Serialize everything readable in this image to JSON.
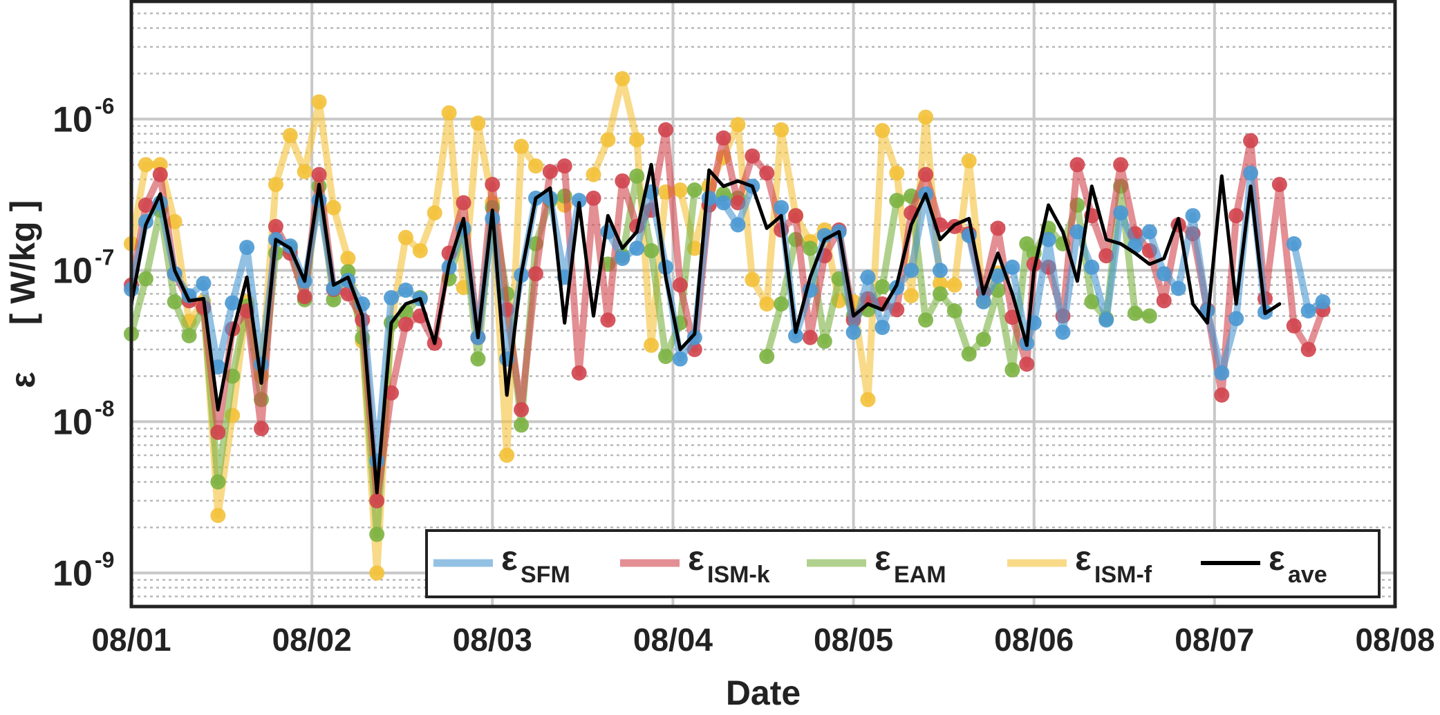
{
  "chart_data": {
    "type": "line",
    "title": "",
    "xlabel": "Date",
    "ylabel": {
      "symbol": "ε",
      "unit": "[ W/kg ]"
    },
    "yscale": "log",
    "ylim": [
      6e-10,
      6e-06
    ],
    "xlim": [
      0,
      7
    ],
    "x_ticks": [
      {
        "x": 0,
        "label": "08/01"
      },
      {
        "x": 1,
        "label": "08/02"
      },
      {
        "x": 2,
        "label": "08/03"
      },
      {
        "x": 3,
        "label": "08/04"
      },
      {
        "x": 4,
        "label": "08/05"
      },
      {
        "x": 5,
        "label": "08/06"
      },
      {
        "x": 6,
        "label": "08/07"
      },
      {
        "x": 7,
        "label": "08/08"
      }
    ],
    "y_ticks": [
      {
        "value": 1e-09,
        "base": "10",
        "exp": "-9"
      },
      {
        "value": 1e-08,
        "base": "10",
        "exp": "-8"
      },
      {
        "value": 1e-07,
        "base": "10",
        "exp": "-7"
      },
      {
        "value": 1e-06,
        "base": "10",
        "exp": "-6"
      }
    ],
    "grid": "major and minor",
    "legend_position": "bottom-right",
    "legend": [
      {
        "symbol": "ε",
        "sub": "SFM"
      },
      {
        "symbol": "ε",
        "sub": "ISM-k"
      },
      {
        "symbol": "ε",
        "sub": "EAM"
      },
      {
        "symbol": "ε",
        "sub": "ISM-f"
      },
      {
        "symbol": "ε",
        "sub": "ave"
      }
    ],
    "colors": {
      "SFM": "#4a98d2",
      "ISM-k": "#d0444d",
      "EAM": "#7cb342",
      "ISM-f": "#f3c13a",
      "ave": "#000000",
      "grid": "#c8c8c8",
      "frame": "#222222"
    },
    "series": [
      {
        "name": "ε_SFM",
        "key": "SFM",
        "x": [
          0.0,
          0.08,
          0.16,
          0.24,
          0.32,
          0.4,
          0.48,
          0.56,
          0.64,
          0.72,
          0.8,
          0.88,
          0.96,
          1.04,
          1.12,
          1.2,
          1.28,
          1.36,
          1.44,
          1.52,
          1.6,
          1.68,
          1.76,
          1.84,
          1.92,
          2.0,
          2.08,
          2.16,
          2.24,
          2.32,
          2.4,
          2.48,
          2.56,
          2.64,
          2.72,
          2.8,
          2.88,
          2.96,
          3.04,
          3.12,
          3.2,
          3.28,
          3.36,
          3.44,
          3.52,
          3.6,
          3.68,
          3.76,
          3.84,
          3.92,
          4.0,
          4.08,
          4.16,
          4.24,
          4.32,
          4.4,
          4.48,
          4.56,
          4.64,
          4.72,
          4.8,
          4.88,
          4.96,
          5.0,
          5.08,
          5.16,
          5.24,
          5.32,
          5.4,
          5.48,
          5.56,
          5.64,
          5.72,
          5.8,
          5.88,
          5.96,
          6.04,
          6.12,
          6.2,
          6.28,
          6.36,
          6.44,
          6.52,
          6.6,
          6.68,
          6.76,
          6.84,
          6.92,
          7.0
        ],
        "y": [
          7.5e-08,
          2.1e-07,
          2.8e-07,
          9.5e-08,
          6.8e-08,
          8.2e-08,
          2.3e-08,
          6.1e-08,
          1.42e-07,
          2.4e-08,
          1.6e-07,
          1.45e-07,
          8.5e-08,
          2.9e-07,
          7.6e-08,
          8.6e-08,
          6e-08,
          5.5e-09,
          6.6e-08,
          7.4e-08,
          6.5e-08,
          null,
          1.05e-07,
          1.9e-07,
          3.6e-08,
          2.2e-07,
          2.6e-08,
          9.3e-08,
          3e-07,
          3e-07,
          9e-08,
          2.9e-07,
          null,
          1.8e-07,
          1.2e-07,
          1.4e-07,
          3.3e-07,
          1.05e-07,
          2.6e-08,
          3.6e-08,
          3e-07,
          2.8e-07,
          2e-07,
          3.6e-07,
          null,
          2.6e-07,
          3.7e-08,
          7.4e-08,
          1.7e-07,
          1.8e-07,
          3.9e-08,
          9e-08,
          4.2e-08,
          7.7e-08,
          1e-07,
          3.2e-07,
          1e-07,
          null,
          1.7e-07,
          6.2e-08,
          9.2e-08,
          1.05e-07,
          3.3e-08,
          4.5e-08,
          1.6e-07,
          3.9e-08,
          1.8e-07,
          1.05e-07,
          4.7e-08,
          2.4e-07,
          1.45e-07,
          1.8e-07,
          9.5e-08,
          7.6e-08,
          2.3e-07,
          5.4e-08,
          2.1e-08,
          4.8e-08,
          4.4e-07,
          5.3e-08,
          null,
          1.5e-07,
          5.4e-08,
          6.2e-08,
          null,
          null,
          null,
          null,
          null
        ],
        "marker_count": 79
      },
      {
        "name": "ε_ISM-k",
        "key": "ISM-k",
        "x": [
          0.0,
          0.08,
          0.16,
          0.24,
          0.32,
          0.4,
          0.48,
          0.56,
          0.64,
          0.72,
          0.8,
          0.88,
          0.96,
          1.04,
          1.12,
          1.2,
          1.28,
          1.36,
          1.44,
          1.52,
          1.6,
          1.68,
          1.76,
          1.84,
          1.92,
          2.0,
          2.08,
          2.16,
          2.24,
          2.32,
          2.4,
          2.48,
          2.56,
          2.64,
          2.72,
          2.8,
          2.88,
          2.96,
          3.04,
          3.12,
          3.2,
          3.28,
          3.36,
          3.44,
          3.52,
          3.6,
          3.68,
          3.76,
          3.84,
          3.92,
          4.0,
          4.08,
          4.16,
          4.24,
          4.32,
          4.4,
          4.48,
          4.56,
          4.64,
          4.72,
          4.8,
          4.88,
          4.96,
          5.0,
          5.08,
          5.16,
          5.24,
          5.32,
          5.4,
          5.48,
          5.56,
          5.64,
          5.72,
          5.8,
          5.88,
          5.96,
          6.04,
          6.12,
          6.2,
          6.28,
          6.36,
          6.44,
          6.52,
          6.6,
          6.68,
          6.76,
          6.84,
          6.92,
          7.0
        ],
        "y": [
          8e-08,
          2.7e-07,
          4.3e-07,
          9.5e-08,
          6.3e-08,
          5.7e-08,
          8.5e-09,
          4.1e-08,
          5.4e-08,
          9e-09,
          1.95e-07,
          1.3e-07,
          6.7e-08,
          4.3e-07,
          7.5e-08,
          7e-08,
          4.7e-08,
          3e-09,
          1.55e-08,
          4.4e-08,
          5e-08,
          3.3e-08,
          1.3e-07,
          2.8e-07,
          3.6e-08,
          3.7e-07,
          5.5e-08,
          1.2e-08,
          9.5e-08,
          4.5e-07,
          4.9e-07,
          2.1e-08,
          3e-07,
          4.7e-08,
          3.9e-07,
          1.95e-07,
          2.5e-07,
          8.5e-07,
          8e-08,
          3e-08,
          2.7e-07,
          7.5e-07,
          2.8e-07,
          5.7e-07,
          4.4e-07,
          1.85e-07,
          2.3e-07,
          3.6e-08,
          1.25e-07,
          1.85e-07,
          4.7e-08,
          6.5e-08,
          6e-08,
          5.5e-08,
          2.4e-07,
          4.3e-07,
          2e-07,
          1.95e-07,
          1.75e-07,
          7.2e-08,
          1.9e-07,
          4.9e-08,
          2.4e-08,
          1.1e-07,
          1.05e-07,
          5e-08,
          5e-07,
          2.3e-07,
          1.25e-07,
          5e-07,
          1.75e-07,
          1.35e-07,
          6.3e-08,
          2e-07,
          1.75e-07,
          5.5e-08,
          1.5e-08,
          2.3e-07,
          7.2e-07,
          6.5e-08,
          3.7e-07,
          4.3e-08,
          3e-08,
          5.5e-08,
          null,
          null,
          null,
          null,
          null
        ],
        "marker_count": 84
      },
      {
        "name": "ε_EAM",
        "key": "EAM",
        "x": [
          0.0,
          0.08,
          0.16,
          0.24,
          0.32,
          0.4,
          0.48,
          0.56,
          0.64,
          0.72,
          0.8,
          0.88,
          0.96,
          1.04,
          1.12,
          1.2,
          1.28,
          1.36,
          1.44,
          1.52,
          1.6,
          1.68,
          1.76,
          1.84,
          1.92,
          2.0,
          2.08,
          2.16,
          2.24,
          2.32,
          2.4,
          2.48,
          2.56,
          2.64,
          2.72,
          2.8,
          2.88,
          2.96,
          3.04,
          3.12,
          3.2,
          3.28,
          3.36,
          3.44,
          3.52,
          3.6,
          3.68,
          3.76,
          3.84,
          3.92,
          4.0,
          4.08,
          4.16,
          4.24,
          4.32,
          4.4,
          4.48,
          4.56,
          4.64,
          4.72,
          4.8,
          4.88,
          4.96,
          5.0,
          5.08,
          5.16,
          5.24,
          5.32,
          5.4,
          5.48,
          5.56,
          5.64,
          5.72,
          5.8,
          5.88,
          5.96,
          6.04,
          6.12,
          6.2,
          6.28,
          6.36,
          6.44,
          6.52,
          6.6,
          6.68,
          6.76,
          6.84,
          6.92,
          7.0
        ],
        "y": [
          3.8e-08,
          8.8e-08,
          2.5e-07,
          6.2e-08,
          3.7e-08,
          5.6e-08,
          4e-09,
          2e-08,
          5.8e-08,
          1.4e-08,
          1.3e-07,
          1.4e-07,
          6.4e-08,
          3.6e-07,
          6.4e-08,
          9.8e-08,
          3.6e-08,
          1.8e-09,
          4.5e-08,
          5.3e-08,
          6.6e-08,
          null,
          8.8e-08,
          1.85e-07,
          2.6e-08,
          2.6e-07,
          7e-08,
          9.5e-09,
          1.5e-07,
          2.9e-07,
          3.1e-07,
          null,
          null,
          1.1e-07,
          1.25e-07,
          4.2e-07,
          1.35e-07,
          2.7e-08,
          4.5e-08,
          3.4e-07,
          null,
          3.2e-07,
          3e-07,
          null,
          2.7e-08,
          6e-08,
          1.6e-07,
          1.4e-07,
          3.4e-08,
          8.8e-08,
          5e-08,
          5.5e-08,
          7.8e-08,
          2.9e-07,
          3.1e-07,
          4.7e-08,
          7e-08,
          5.4e-08,
          2.8e-08,
          3.5e-08,
          7.4e-08,
          2.2e-08,
          1.5e-07,
          1.3e-07,
          1.9e-07,
          1.5e-07,
          2.7e-07,
          6.2e-08,
          4.8e-08,
          3.6e-07,
          5.2e-08,
          5e-08,
          null,
          null,
          null,
          null,
          null,
          null,
          null,
          null,
          null,
          null,
          null,
          null,
          null,
          null,
          null,
          null,
          null
        ],
        "marker_count": 72
      },
      {
        "name": "ε_ISM-f",
        "key": "ISM-f",
        "x": [
          0.0,
          0.08,
          0.16,
          0.24,
          0.32,
          0.4,
          0.48,
          0.56,
          0.64,
          0.72,
          0.8,
          0.88,
          0.96,
          1.04,
          1.12,
          1.2,
          1.28,
          1.36,
          1.44,
          1.52,
          1.6,
          1.68,
          1.76,
          1.84,
          1.92,
          2.0,
          2.08,
          2.16,
          2.24,
          2.32,
          2.4,
          2.48,
          2.56,
          2.64,
          2.72,
          2.8,
          2.88,
          2.96,
          3.04,
          3.12,
          3.2,
          3.28,
          3.36,
          3.44,
          3.52,
          3.6,
          3.68,
          3.76,
          3.84,
          3.92,
          4.0,
          4.08,
          4.16,
          4.24,
          4.32,
          4.4,
          4.48,
          4.56,
          4.64,
          4.72,
          4.8,
          4.88,
          4.96,
          5.0,
          5.08,
          5.16,
          5.24,
          5.32,
          5.4,
          5.48,
          5.56,
          5.64,
          5.72,
          5.8,
          5.88,
          5.96,
          6.04,
          6.12,
          6.2,
          6.28,
          6.36,
          6.44,
          6.52,
          6.6,
          6.68,
          6.76,
          6.84,
          6.92,
          7.0
        ],
        "y": [
          1.5e-07,
          5e-07,
          5e-07,
          2.1e-07,
          4.6e-08,
          6.2e-08,
          2.4e-09,
          1.1e-08,
          6.2e-08,
          2e-08,
          3.7e-07,
          7.8e-07,
          4.5e-07,
          1.3e-06,
          2.6e-07,
          1.2e-07,
          3.4e-08,
          1e-09,
          4.5e-08,
          1.65e-07,
          1.35e-07,
          2.4e-07,
          1.1e-06,
          7.7e-08,
          9.4e-07,
          2.8e-07,
          6e-09,
          6.6e-07,
          4.9e-07,
          null,
          2.7e-07,
          null,
          4.3e-07,
          7.3e-07,
          1.85e-06,
          7.3e-07,
          3.2e-08,
          3.3e-07,
          3.4e-07,
          1.4e-07,
          3.6e-07,
          5.6e-07,
          9.2e-07,
          8.7e-08,
          6e-08,
          8.5e-07,
          2.3e-07,
          1.55e-07,
          1.85e-07,
          6.3e-08,
          6.2e-08,
          1.4e-08,
          8.4e-07,
          4.4e-07,
          6.8e-08,
          1.03e-06,
          8.2e-08,
          8e-08,
          5.3e-07,
          6.3e-08,
          9.6e-08,
          null,
          null,
          null,
          null,
          null,
          null,
          null,
          null,
          null,
          null,
          null,
          null,
          null,
          null,
          null,
          null,
          null,
          null,
          null,
          null,
          null,
          null,
          null,
          null,
          null,
          null,
          null,
          null
        ],
        "marker_count": 61
      },
      {
        "name": "ε_ave",
        "key": "ave",
        "x": [
          0.0,
          0.08,
          0.16,
          0.24,
          0.32,
          0.4,
          0.48,
          0.56,
          0.64,
          0.72,
          0.8,
          0.88,
          0.96,
          1.04,
          1.12,
          1.2,
          1.28,
          1.36,
          1.44,
          1.52,
          1.6,
          1.68,
          1.76,
          1.84,
          1.92,
          2.0,
          2.08,
          2.16,
          2.24,
          2.32,
          2.4,
          2.48,
          2.56,
          2.64,
          2.72,
          2.8,
          2.88,
          2.96,
          3.04,
          3.12,
          3.2,
          3.28,
          3.36,
          3.44,
          3.52,
          3.6,
          3.68,
          3.76,
          3.84,
          3.92,
          4.0,
          4.08,
          4.16,
          4.24,
          4.32,
          4.4,
          4.48,
          4.56,
          4.64,
          4.72,
          4.8,
          4.88,
          4.96,
          5.0,
          5.08,
          5.16,
          5.24,
          5.32,
          5.4,
          5.48,
          5.56,
          5.64,
          5.72,
          5.8,
          5.88,
          5.96,
          6.04,
          6.12,
          6.2,
          6.28,
          6.36,
          6.44,
          6.52,
          6.6,
          6.68,
          6.76,
          6.84,
          6.92,
          7.0
        ],
        "y": [
          6e-08,
          2e-07,
          3.2e-07,
          1e-07,
          6.3e-08,
          6.5e-08,
          1.2e-08,
          3.8e-08,
          9e-08,
          1.8e-08,
          1.6e-07,
          1.4e-07,
          8.5e-08,
          3.7e-07,
          8e-08,
          9e-08,
          5e-08,
          3.4e-09,
          4.5e-08,
          6e-08,
          6.5e-08,
          3.3e-08,
          1.1e-07,
          2.2e-07,
          3.6e-08,
          2.5e-07,
          1.5e-08,
          9.5e-08,
          3e-07,
          3.5e-07,
          4.5e-08,
          2.8e-07,
          5e-08,
          2.3e-07,
          1.4e-07,
          1.8e-07,
          5e-07,
          9e-08,
          3e-08,
          3.8e-08,
          4.6e-07,
          3.6e-07,
          3.9e-07,
          3.6e-07,
          1.9e-07,
          2.3e-07,
          3.9e-08,
          9e-08,
          1.6e-07,
          1.8e-07,
          5e-08,
          6e-08,
          5.5e-08,
          8e-08,
          2e-07,
          3.2e-07,
          1.6e-07,
          2e-07,
          2.2e-07,
          7e-08,
          1.3e-07,
          7e-08,
          3.2e-08,
          1e-07,
          2.7e-07,
          1.8e-07,
          8.5e-08,
          3.6e-07,
          1.6e-07,
          1.5e-07,
          1.3e-07,
          1.1e-07,
          1.2e-07,
          2.2e-07,
          6e-08,
          4.5e-08,
          4.2e-07,
          6e-08,
          3.6e-07,
          5.2e-08,
          6e-08,
          null,
          null,
          null,
          null,
          null,
          null,
          null,
          null
        ],
        "marker_count": 0
      }
    ]
  }
}
